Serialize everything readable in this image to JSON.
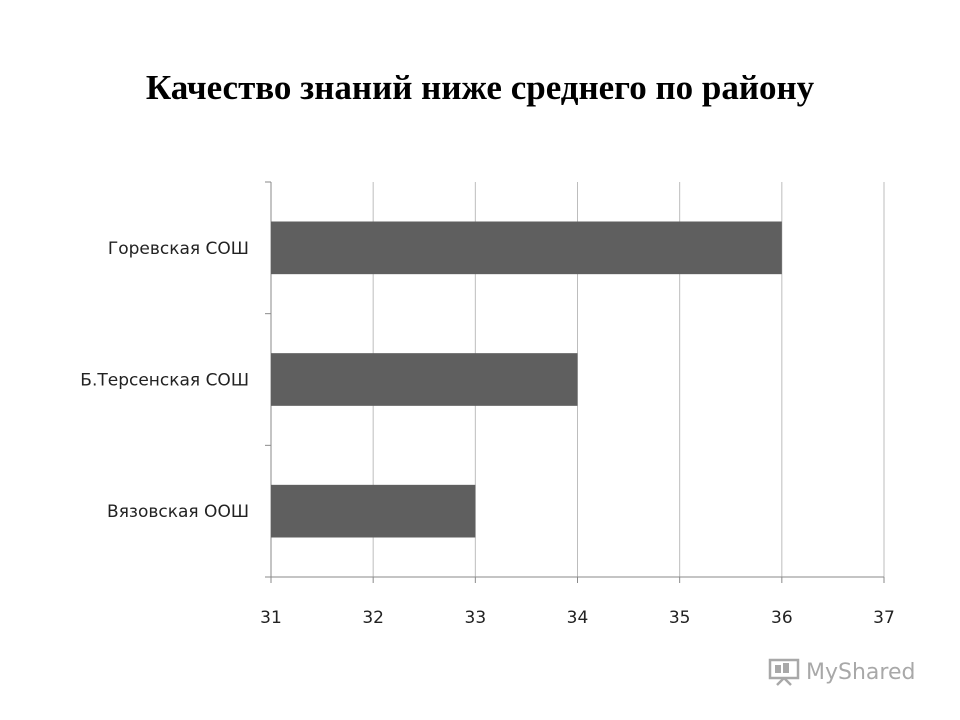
{
  "title": "Качество знаний ниже среднего по району",
  "chart_data": {
    "type": "bar",
    "orientation": "horizontal",
    "categories": [
      "Горевская СОШ",
      "Б.Терсенская СОШ",
      "Вязовская ООШ"
    ],
    "values": [
      36,
      34,
      33
    ],
    "xlabel": "",
    "ylabel": "",
    "xlim": [
      31,
      37
    ],
    "xticks": [
      31,
      32,
      33,
      34,
      35,
      36,
      37
    ],
    "grid": true,
    "bar_color": "#5f5f5f",
    "grid_color": "#bdbdbd"
  },
  "watermark": {
    "text": "MyShared",
    "icon": "presentation-board-icon"
  }
}
